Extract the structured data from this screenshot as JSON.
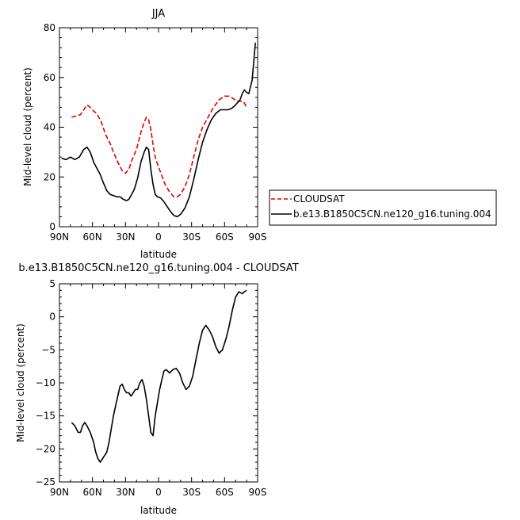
{
  "chart_data": [
    {
      "type": "line",
      "title": "JJA",
      "xlabel": "latitude",
      "ylabel": "Mid-level cloud (percent)",
      "xlim": [
        90,
        -90
      ],
      "ylim": [
        0,
        80
      ],
      "xticks": [
        90,
        60,
        30,
        0,
        -30,
        -60,
        -90
      ],
      "xtick_labels": [
        "90N",
        "60N",
        "30N",
        "0",
        "30S",
        "60S",
        "90S"
      ],
      "yticks": [
        0,
        20,
        40,
        60,
        80
      ],
      "ytick_labels": [
        "0",
        "20",
        "40",
        "60",
        "80"
      ],
      "legend_position": "right",
      "series": [
        {
          "name": "CLOUDSAT",
          "color": "#e00000",
          "dash": "dashed",
          "x": [
            79,
            75,
            71,
            68,
            65,
            62,
            59,
            56,
            52,
            48,
            44,
            40,
            36,
            33,
            30,
            27,
            24,
            20,
            16,
            13,
            11,
            9,
            7,
            5,
            3,
            0,
            -3,
            -6,
            -10,
            -14,
            -17,
            -20,
            -24,
            -28,
            -32,
            -36,
            -40,
            -45,
            -50,
            -55,
            -60,
            -64,
            -68,
            -71,
            -74,
            -77,
            -80
          ],
          "y": [
            44,
            44.5,
            45,
            47,
            49,
            48,
            46.5,
            45.5,
            42,
            37,
            33.5,
            29,
            25,
            22.5,
            21.5,
            23,
            27,
            31,
            38,
            42,
            44,
            43,
            39,
            33,
            28,
            24,
            20.5,
            17,
            14,
            12,
            12,
            13,
            16,
            21,
            28,
            35,
            40,
            44,
            48,
            51,
            52.5,
            52.5,
            51.5,
            50.5,
            50.5,
            50.5,
            48
          ]
        },
        {
          "name": "b.e13.B1850C5CN.ne120_g16.tuning.004",
          "color": "#000000",
          "dash": "solid",
          "x": [
            88,
            84,
            80,
            76,
            72,
            68,
            65,
            62,
            59,
            56,
            53,
            50,
            47,
            44,
            41,
            38,
            35,
            32,
            29,
            27,
            25,
            22,
            19,
            16,
            13,
            11,
            9,
            7,
            5,
            3,
            1,
            -2,
            -5,
            -8,
            -11,
            -14,
            -17,
            -20,
            -24,
            -28,
            -32,
            -36,
            -40,
            -44,
            -48,
            -52,
            -56,
            -60,
            -63,
            -66,
            -69,
            -72,
            -74,
            -76,
            -78,
            -80,
            -82,
            -85,
            -88
          ],
          "y": [
            27.5,
            27,
            28,
            27,
            28,
            31,
            32,
            30,
            26,
            23.5,
            21,
            17.5,
            14.5,
            13,
            12.5,
            12,
            12,
            11,
            10.5,
            11,
            12.5,
            15,
            19.5,
            26,
            30,
            32,
            31,
            23,
            17,
            13,
            12,
            11.5,
            10,
            8,
            6,
            4.5,
            4,
            5,
            7.5,
            12,
            19,
            27,
            34,
            39,
            43,
            45.5,
            47,
            47,
            47,
            47.5,
            48.5,
            50,
            51,
            53.5,
            55,
            54,
            53.5,
            59,
            74
          ]
        }
      ]
    },
    {
      "type": "line",
      "title": "b.e13.B1850C5CN.ne120_g16.tuning.004 - CLOUDSAT",
      "xlabel": "latitude",
      "ylabel": "Mid-level cloud (percent)",
      "xlim": [
        90,
        -90
      ],
      "ylim": [
        -25,
        5
      ],
      "xticks": [
        90,
        60,
        30,
        0,
        -30,
        -60,
        -90
      ],
      "xtick_labels": [
        "90N",
        "60N",
        "30N",
        "0",
        "30S",
        "60S",
        "90S"
      ],
      "yticks": [
        -25,
        -20,
        -15,
        -10,
        -5,
        0,
        5
      ],
      "ytick_labels": [
        "−25",
        "−20",
        "−15",
        "−10",
        "−5",
        "0",
        "5"
      ],
      "series": [
        {
          "name": "",
          "color": "#000000",
          "dash": "solid",
          "x": [
            79,
            76,
            73,
            71,
            69,
            67,
            65,
            62,
            59,
            57,
            55,
            53,
            51,
            49,
            47,
            45,
            43,
            41,
            39,
            37,
            35,
            33,
            31,
            29,
            27,
            25,
            23,
            21,
            19,
            17,
            15,
            13,
            11,
            9,
            7,
            5,
            3,
            1,
            -1,
            -3,
            -5,
            -7,
            -10,
            -13,
            -16,
            -19,
            -22,
            -25,
            -28,
            -31,
            -34,
            -37,
            -40,
            -43,
            -46,
            -49,
            -52,
            -55,
            -58,
            -61,
            -64,
            -67,
            -70,
            -73,
            -76,
            -78,
            -80
          ],
          "y": [
            -16,
            -16.5,
            -17.5,
            -17.5,
            -16.5,
            -16,
            -16.5,
            -17.5,
            -19,
            -20.5,
            -21.5,
            -22,
            -21.5,
            -21,
            -20.5,
            -19,
            -17,
            -15,
            -13.5,
            -12,
            -10.5,
            -10.2,
            -11,
            -11.5,
            -11.5,
            -12,
            -11.5,
            -11,
            -11,
            -10,
            -9.5,
            -10.5,
            -12.5,
            -15,
            -17.5,
            -18,
            -15,
            -13,
            -11,
            -9.5,
            -8.2,
            -8,
            -8.5,
            -8,
            -7.8,
            -8.5,
            -10,
            -11,
            -10.5,
            -9,
            -6.5,
            -4,
            -2,
            -1.3,
            -2,
            -3,
            -4.5,
            -5.5,
            -5,
            -3.5,
            -1.5,
            1,
            3,
            3.8,
            3.5,
            3.8,
            4
          ]
        }
      ]
    }
  ]
}
